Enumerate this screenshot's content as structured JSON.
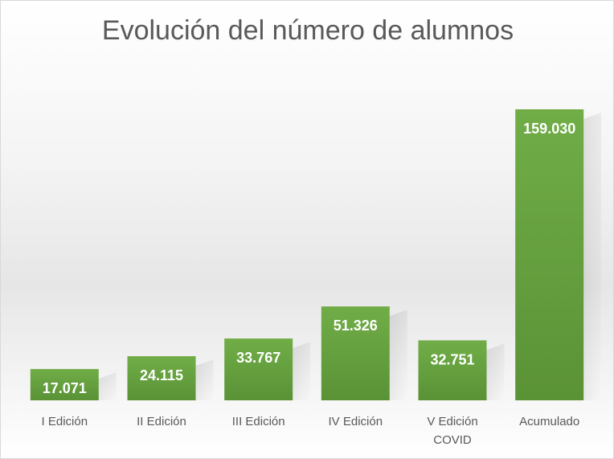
{
  "chart_data": {
    "type": "bar",
    "title": "Evolución del número de alumnos",
    "categories": [
      "I Edición",
      "II Edición",
      "III Edición",
      "IV Edición",
      "V Edición COVID",
      "Acumulado"
    ],
    "category_lines": [
      [
        "I Edición"
      ],
      [
        "II Edición"
      ],
      [
        "III Edición"
      ],
      [
        "IV Edición"
      ],
      [
        "V Edición",
        "COVID"
      ],
      [
        "Acumulado"
      ]
    ],
    "values": [
      17071,
      24115,
      33767,
      51326,
      32751,
      159030
    ],
    "data_labels": [
      "17.071",
      "24.115",
      "33.767",
      "51.326",
      "32.751",
      "159.030"
    ],
    "xlabel": "",
    "ylabel": "",
    "ylim": [
      0,
      159030
    ],
    "grid": false,
    "legend": "none",
    "colors": {
      "bar_top": "#70ad47",
      "bar_bottom": "#5a9236",
      "label": "#ffffff",
      "tick": "#595959",
      "title": "#595959"
    }
  }
}
